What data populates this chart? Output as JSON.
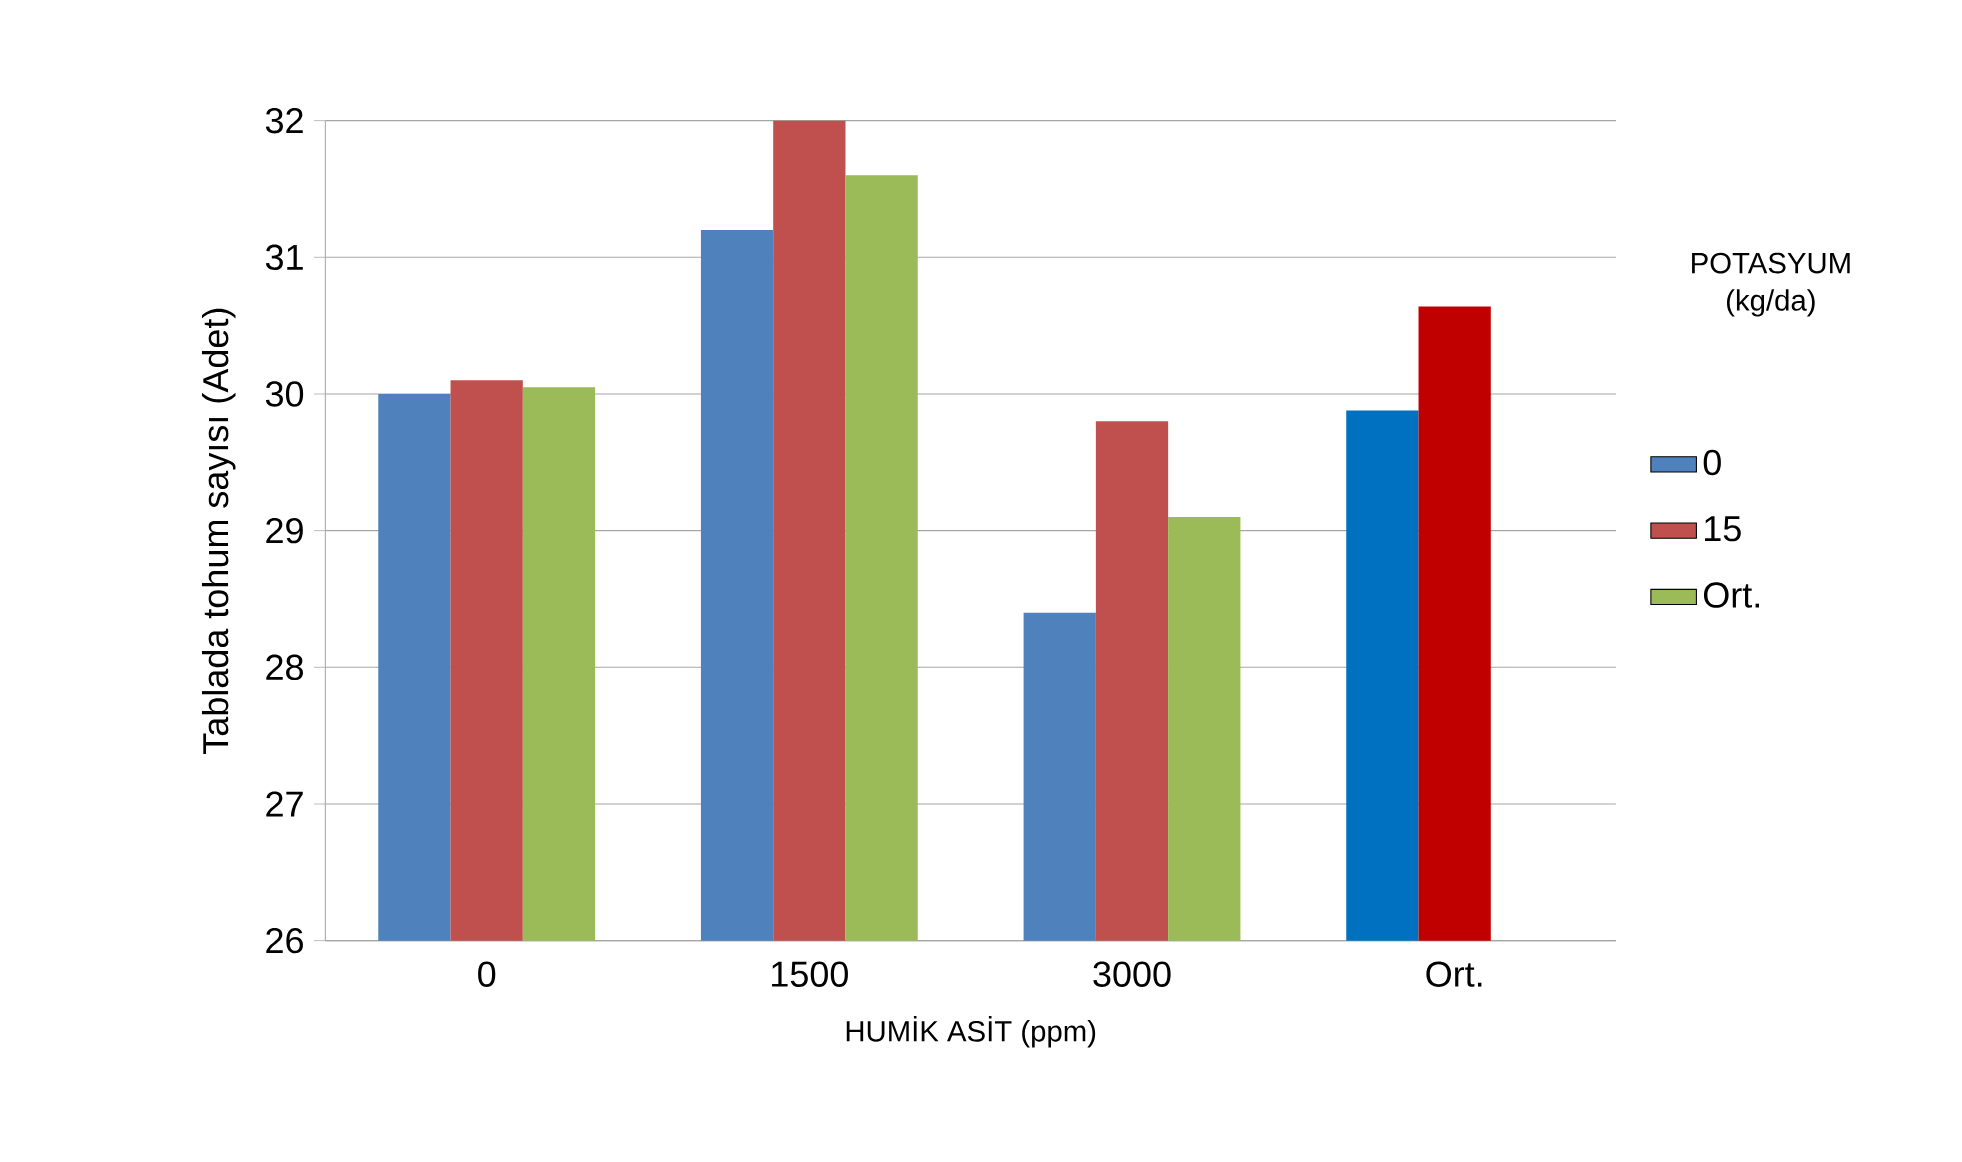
{
  "chart_data": {
    "type": "bar",
    "xlabel": "HUMİK ASİT (ppm)",
    "ylabel": "Tablada tohum sayısı (Adet)",
    "legend_title": "POTASYUM (kg/da)",
    "categories": [
      "0",
      "1500",
      "3000",
      "Ort."
    ],
    "series": [
      {
        "name": "0",
        "color": "#4f81bd",
        "colors": [
          "#4f81bd",
          "#4f81bd",
          "#4f81bd",
          "#0070c0"
        ],
        "values": [
          30.0,
          31.2,
          28.4,
          29.88
        ]
      },
      {
        "name": "15",
        "color": "#c0504d",
        "colors": [
          "#c0504d",
          "#c0504d",
          "#c0504d",
          "#c00000"
        ],
        "values": [
          30.1,
          32.0,
          29.8,
          30.64
        ]
      },
      {
        "name": "Ort.",
        "color": "#9bbb59",
        "values": [
          30.05,
          31.6,
          29.1,
          null
        ]
      }
    ],
    "ylim": [
      26,
      32
    ],
    "yticks": [
      26,
      27,
      28,
      29,
      30,
      31,
      32
    ],
    "grid": "y",
    "legend": "right"
  }
}
